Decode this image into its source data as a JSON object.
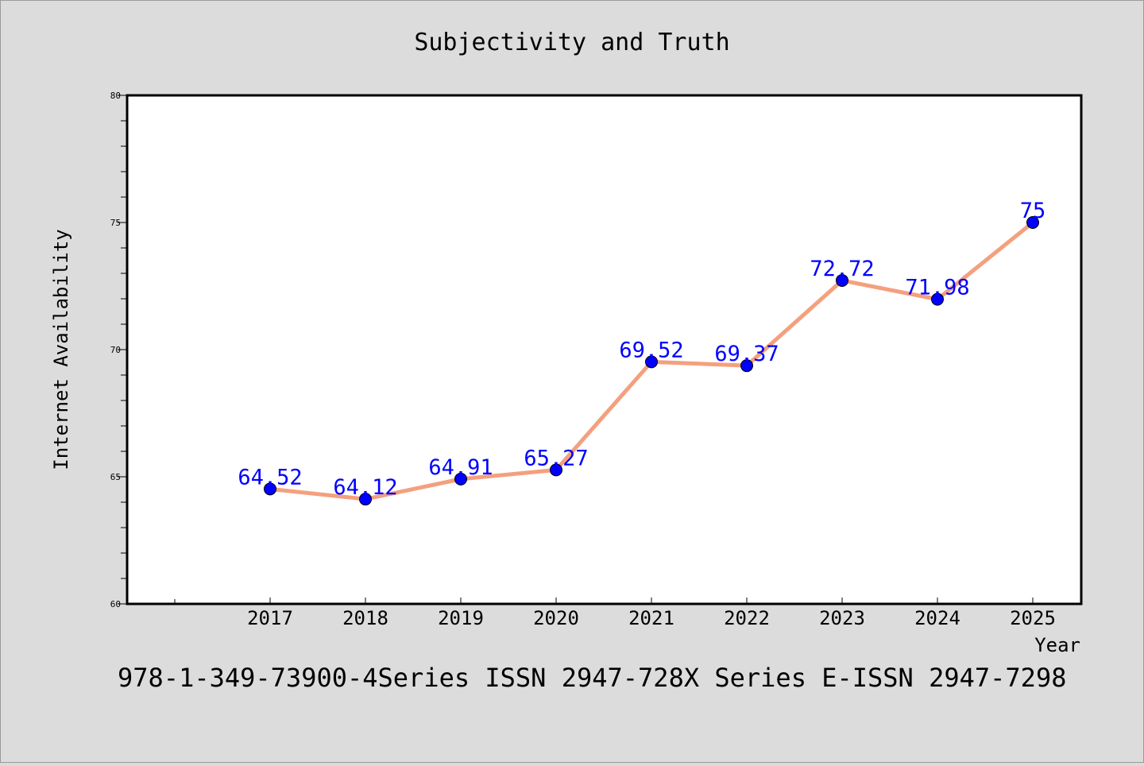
{
  "chart_data": {
    "type": "line",
    "title": "Subjectivity and Truth",
    "xlabel": "Year",
    "ylabel": "Internet Availability",
    "categories": [
      "2017",
      "2018",
      "2019",
      "2020",
      "2021",
      "2022",
      "2023",
      "2024",
      "2025"
    ],
    "series": [
      {
        "values": [
          64.52,
          64.12,
          64.91,
          65.27,
          69.52,
          69.37,
          72.72,
          71.98,
          75
        ],
        "labels": [
          "64.52",
          "64.12",
          "64.91",
          "65.27",
          "69.52",
          "69.37",
          "72.72",
          "71.98",
          "75"
        ],
        "line_color": "#f4a07e",
        "marker_color": "#0000ff"
      }
    ],
    "ylim": [
      60,
      80
    ],
    "yticks": [
      "60",
      "65",
      "70",
      "75",
      "80"
    ],
    "grid": false,
    "data_label_color": "#0000ff"
  },
  "footer": "978-1-349-73900-4Series ISSN 2947-728X Series E-ISSN 2947-7298",
  "colors": {
    "background": "#dcdcdc",
    "plot_background": "#ffffff",
    "axis": "#000000"
  }
}
